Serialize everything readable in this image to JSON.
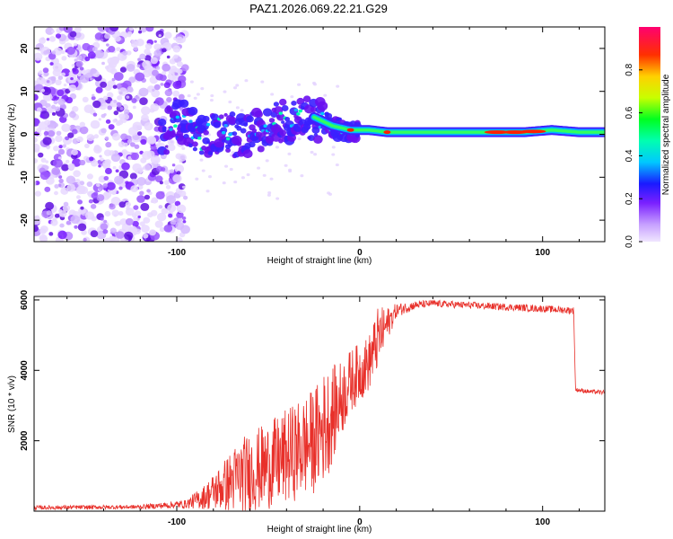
{
  "title": "PAZ1.2026.069.22.21.G29",
  "colors": {
    "line": "#e8302a",
    "frame": "#000000"
  },
  "chart_data": [
    {
      "type": "heatmap",
      "xlabel": "Height of straight line (km)",
      "ylabel": "Frequency (Hz)",
      "xlim": [
        -178,
        134
      ],
      "ylim": [
        -25,
        25
      ],
      "xticks": [
        -100,
        0,
        100
      ],
      "xtick_labels": [
        "-100",
        "0",
        "100"
      ],
      "yticks": [
        -20,
        -10,
        0,
        10,
        20
      ],
      "ytick_labels": [
        "-20",
        "-10",
        "0",
        "10",
        "20"
      ],
      "colorbar": {
        "label": "Normalized spectral amplitude",
        "range": [
          0,
          1
        ],
        "ticks": [
          0.0,
          0.2,
          0.4,
          0.6,
          0.8
        ],
        "tick_labels": [
          "0.0",
          "0.2",
          "0.4",
          "0.6",
          "0.8"
        ]
      },
      "trace": {
        "description_points_x": [
          -105,
          -95,
          -85,
          -75,
          -65,
          -55,
          -45,
          -35,
          -25,
          -15,
          -5,
          5,
          15,
          30,
          60,
          90,
          105,
          120,
          134
        ],
        "description_points_y": [
          4,
          3,
          -1,
          1,
          -1,
          1,
          3,
          3,
          4,
          2,
          1,
          1,
          0.5,
          0.5,
          0.5,
          0.5,
          1,
          0.5,
          0.5
        ]
      }
    },
    {
      "type": "line",
      "xlabel": "Height of straight line (km)",
      "ylabel": "SNR (10 * v/v)",
      "xlim": [
        -178,
        134
      ],
      "ylim": [
        0,
        6100
      ],
      "xticks": [
        -100,
        0,
        100
      ],
      "xtick_labels": [
        "-100",
        "0",
        "100"
      ],
      "yticks": [
        2000,
        4000,
        6000
      ],
      "ytick_labels": [
        "2000",
        "4000",
        "6000"
      ],
      "series": [
        {
          "name": "SNR",
          "envelope_x": [
            -178,
            -120,
            -95,
            -85,
            -75,
            -65,
            -55,
            -45,
            -35,
            -25,
            -18,
            -12,
            -5,
            5,
            10,
            15,
            20,
            30,
            40,
            60,
            80,
            100,
            117,
            118,
            125,
            134
          ],
          "envelope_mean": [
            100,
            120,
            200,
            400,
            700,
            1000,
            1200,
            1400,
            1700,
            2000,
            2500,
            3000,
            3700,
            4200,
            4900,
            5300,
            5700,
            5850,
            5900,
            5850,
            5800,
            5750,
            5700,
            3450,
            3400,
            3370
          ],
          "envelope_amp": [
            60,
            60,
            120,
            350,
            700,
            1100,
            1200,
            1300,
            1400,
            1500,
            1600,
            1200,
            900,
            800,
            900,
            500,
            200,
            120,
            100,
            100,
            100,
            100,
            100,
            60,
            60,
            60
          ]
        }
      ]
    }
  ]
}
